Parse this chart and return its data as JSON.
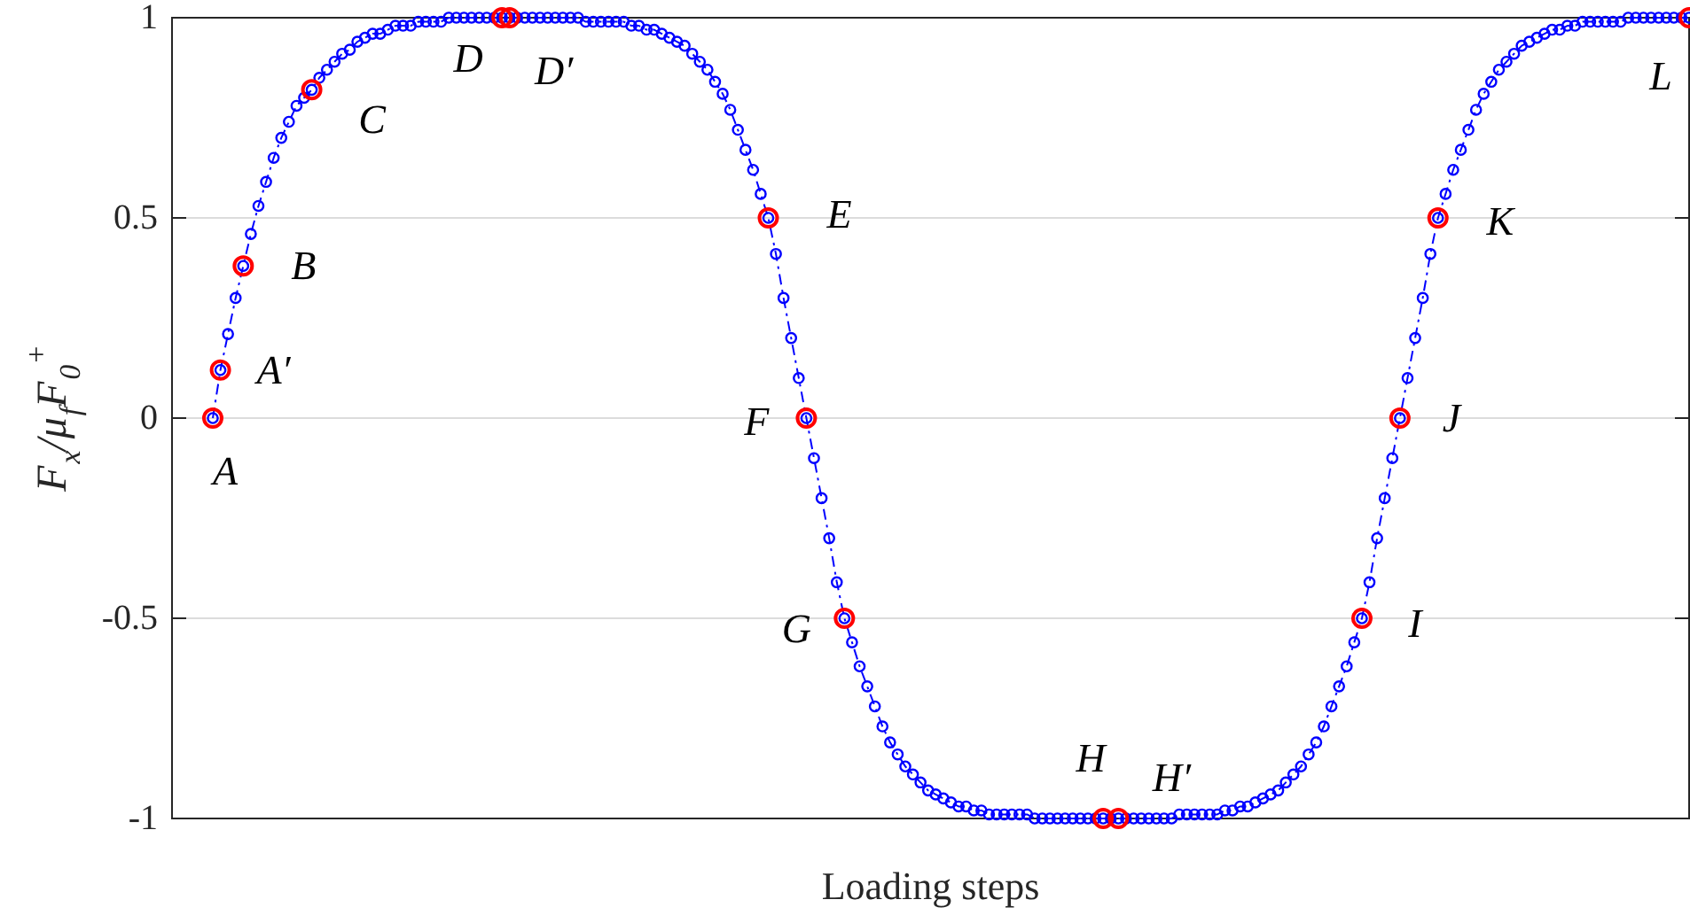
{
  "chart_data": {
    "type": "line",
    "xlabel": "Loading steps",
    "ylabel": "F$_{x}$/μ$_{f}$F$_{0}$$^{+}$",
    "categories": [
      null,
      null,
      null,
      null,
      null,
      null,
      null,
      null,
      null,
      null,
      null,
      null,
      null,
      null,
      null,
      null,
      null,
      null,
      null,
      null,
      null,
      null,
      null,
      null,
      null,
      null,
      null,
      null,
      null,
      null,
      null,
      null,
      null,
      null,
      null,
      null,
      null,
      null,
      null,
      null,
      null,
      null,
      null,
      null,
      null,
      null,
      null,
      null,
      null,
      null,
      null,
      null,
      null,
      null,
      null,
      null,
      null,
      null,
      null,
      null,
      null,
      null,
      null,
      null,
      null,
      null,
      null,
      null,
      null,
      null,
      null,
      null,
      null,
      null,
      null,
      null,
      null,
      null,
      null,
      null,
      null,
      null,
      null,
      null,
      null,
      null,
      null,
      null,
      null,
      null,
      null,
      null,
      null,
      null,
      null,
      null,
      null,
      null,
      null,
      null,
      null,
      null,
      null,
      null,
      null,
      null,
      null,
      null,
      null,
      null,
      null,
      null,
      null,
      null,
      null,
      null,
      null,
      null,
      null,
      null,
      null,
      null,
      null,
      null,
      null,
      null,
      null,
      null,
      null,
      null,
      null,
      null,
      null,
      null,
      null,
      null,
      null,
      null,
      null,
      null,
      null,
      null,
      null,
      null,
      null,
      null,
      null,
      null,
      null,
      null,
      null,
      null,
      null,
      null,
      null,
      null,
      null,
      null,
      null,
      null,
      null,
      null,
      null,
      null,
      null,
      null,
      null,
      null,
      null,
      null,
      null,
      null,
      null,
      null,
      null,
      null,
      null,
      null,
      null,
      null,
      null,
      null,
      null,
      null,
      null,
      null,
      null,
      null,
      null,
      null,
      null,
      null,
      null,
      null,
      null
    ],
    "series": [
      {
        "type": "line",
        "color": "#0000ff",
        "marker": "circle",
        "line_style": "dashdot",
        "values": [
          0,
          0.12,
          0.21,
          0.3,
          0.38,
          0.46,
          0.53,
          0.59,
          0.65,
          0.7,
          0.74,
          0.78,
          0.8,
          0.82,
          0.85,
          0.87,
          0.89,
          0.91,
          0.92,
          0.94,
          0.95,
          0.96,
          0.96,
          0.97,
          0.98,
          0.98,
          0.98,
          0.99,
          0.99,
          0.99,
          0.99,
          1,
          1,
          1,
          1,
          1,
          1,
          1,
          1,
          1,
          1,
          1,
          1,
          1,
          1,
          1,
          1,
          1,
          1,
          0.99,
          0.99,
          0.99,
          0.99,
          0.99,
          0.99,
          0.98,
          0.98,
          0.97,
          0.97,
          0.96,
          0.95,
          0.94,
          0.93,
          0.91,
          0.89,
          0.87,
          0.84,
          0.81,
          0.77,
          0.72,
          0.67,
          0.62,
          0.56,
          0.5,
          0.41,
          0.3,
          0.2,
          0.1,
          0,
          -0.1,
          -0.2,
          -0.3,
          -0.41,
          -0.5,
          -0.56,
          -0.62,
          -0.67,
          -0.72,
          -0.77,
          -0.81,
          -0.84,
          -0.87,
          -0.89,
          -0.91,
          -0.93,
          -0.94,
          -0.95,
          -0.96,
          -0.97,
          -0.97,
          -0.98,
          -0.98,
          -0.99,
          -0.99,
          -0.99,
          -0.99,
          -0.99,
          -0.99,
          -1,
          -1,
          -1,
          -1,
          -1,
          -1,
          -1,
          -1,
          -1,
          -1,
          -1,
          -1,
          -1,
          -1,
          -1,
          -1,
          -1,
          -1,
          -1,
          -0.99,
          -0.99,
          -0.99,
          -0.99,
          -0.99,
          -0.99,
          -0.98,
          -0.98,
          -0.97,
          -0.97,
          -0.96,
          -0.95,
          -0.94,
          -0.93,
          -0.91,
          -0.89,
          -0.87,
          -0.84,
          -0.81,
          -0.77,
          -0.72,
          -0.67,
          -0.62,
          -0.56,
          -0.5,
          -0.41,
          -0.3,
          -0.2,
          -0.1,
          0,
          0.1,
          0.2,
          0.3,
          0.41,
          0.5,
          0.56,
          0.62,
          0.67,
          0.72,
          0.77,
          0.81,
          0.84,
          0.87,
          0.89,
          0.91,
          0.93,
          0.94,
          0.95,
          0.96,
          0.97,
          0.97,
          0.98,
          0.98,
          0.99,
          0.99,
          0.99,
          0.99,
          0.99,
          0.99,
          1,
          1,
          1,
          1,
          1,
          1,
          1,
          1,
          1
        ]
      },
      {
        "type": "scatter",
        "color": "#ff0000",
        "marker": "circle",
        "values": [
          0,
          0.12,
          null,
          null,
          0.38,
          null,
          null,
          null,
          null,
          null,
          null,
          null,
          null,
          0.82,
          null,
          null,
          null,
          null,
          null,
          null,
          null,
          null,
          null,
          null,
          null,
          null,
          null,
          null,
          null,
          null,
          null,
          null,
          null,
          null,
          null,
          null,
          null,
          null,
          1,
          1,
          null,
          null,
          null,
          null,
          null,
          null,
          null,
          null,
          null,
          null,
          null,
          null,
          null,
          null,
          null,
          null,
          null,
          null,
          null,
          null,
          null,
          null,
          null,
          null,
          null,
          null,
          null,
          null,
          null,
          null,
          null,
          null,
          null,
          0.5,
          null,
          null,
          null,
          null,
          0,
          null,
          null,
          null,
          null,
          -0.5,
          null,
          null,
          null,
          null,
          null,
          null,
          null,
          null,
          null,
          null,
          null,
          null,
          null,
          null,
          null,
          null,
          null,
          null,
          null,
          null,
          null,
          null,
          null,
          null,
          null,
          null,
          null,
          null,
          null,
          null,
          null,
          null,
          null,
          -1,
          null,
          -1,
          null,
          null,
          null,
          null,
          null,
          null,
          null,
          null,
          null,
          null,
          null,
          null,
          null,
          null,
          null,
          null,
          null,
          null,
          null,
          null,
          null,
          null,
          null,
          null,
          null,
          null,
          null,
          null,
          null,
          null,
          null,
          -0.5,
          null,
          null,
          null,
          null,
          0,
          null,
          null,
          null,
          null,
          0.5,
          null,
          null,
          null,
          null,
          null,
          null,
          null,
          null,
          null,
          null,
          null,
          null,
          null,
          null,
          null,
          null,
          null,
          null,
          null,
          null,
          null,
          null,
          null,
          null,
          null,
          null,
          null,
          null,
          null,
          null,
          null,
          null,
          1
        ]
      }
    ],
    "annotations": [
      "A",
      "A′",
      "B",
      "C",
      "D",
      "D′",
      "E",
      "F",
      "G",
      "H",
      "H′",
      "I",
      "J",
      "K",
      "L"
    ],
    "ylim": [
      -1,
      1
    ],
    "yticks": [
      -1,
      -0.5,
      0,
      0.5,
      1
    ],
    "grid": "y",
    "tick_labels": "y"
  }
}
